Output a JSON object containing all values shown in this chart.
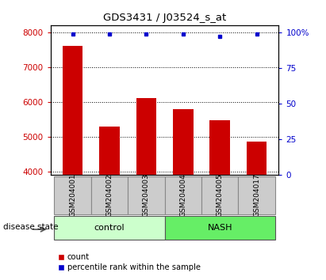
{
  "title": "GDS3431 / J03524_s_at",
  "samples": [
    "GSM204001",
    "GSM204002",
    "GSM204003",
    "GSM204004",
    "GSM204005",
    "GSM204017"
  ],
  "counts": [
    7600,
    5300,
    6100,
    5780,
    5480,
    4870
  ],
  "percentile_ranks": [
    99,
    99,
    99,
    99,
    97,
    99
  ],
  "ylim_left": [
    3900,
    8200
  ],
  "ylim_right": [
    0,
    105
  ],
  "yticks_left": [
    4000,
    5000,
    6000,
    7000,
    8000
  ],
  "yticks_right": [
    0,
    25,
    50,
    75,
    100
  ],
  "ytick_labels_right": [
    "0",
    "25",
    "50",
    "75",
    "100%"
  ],
  "bar_color": "#cc0000",
  "dot_color": "#0000cc",
  "control_color": "#ccffcc",
  "nash_color": "#66ee66",
  "label_box_color": "#cccccc",
  "disease_state_label": "disease state",
  "control_label": "control",
  "nash_label": "NASH",
  "legend_count_label": "count",
  "legend_percentile_label": "percentile rank within the sample",
  "bar_width": 0.55
}
